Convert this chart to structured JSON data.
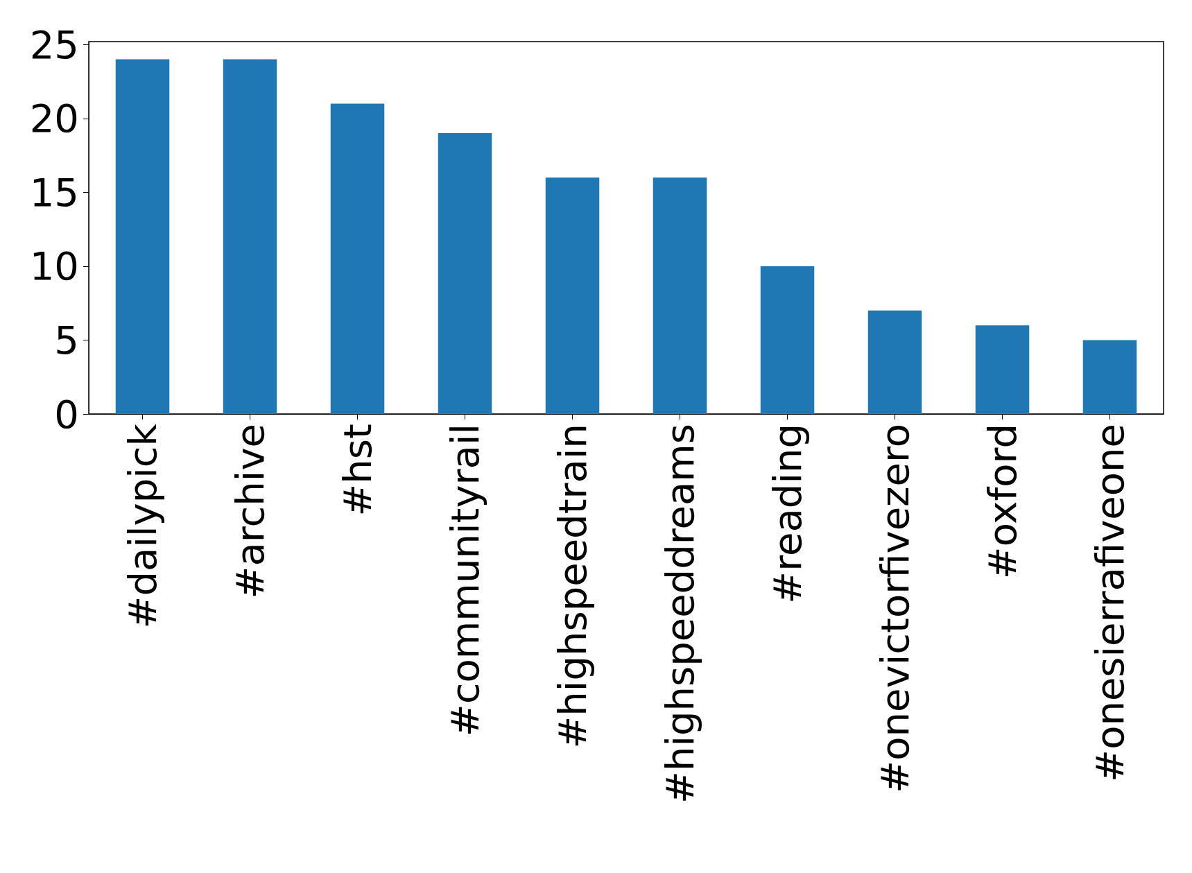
{
  "chart_data": {
    "type": "bar",
    "categories": [
      "#dailypick",
      "#archive",
      "#hst",
      "#communityrail",
      "#highspeedtrain",
      "#highspeeddreams",
      "#reading",
      "#onevictorfivezero",
      "#oxford",
      "#onesierrafiveone"
    ],
    "values": [
      24,
      24,
      21,
      19,
      16,
      16,
      10,
      7,
      6,
      5
    ],
    "color": "#1f77b4",
    "ylim": [
      0,
      25.2
    ],
    "yticks": [
      0,
      5,
      10,
      15,
      20,
      25
    ],
    "grid": false
  }
}
